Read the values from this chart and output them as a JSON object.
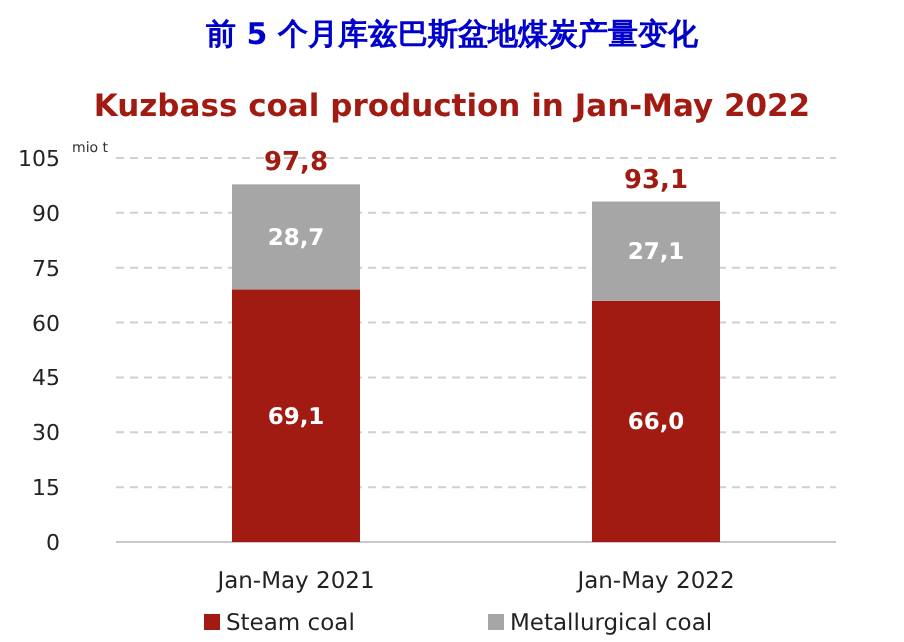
{
  "chart_data": {
    "type": "bar",
    "title": "前 5 个月库兹巴斯盆地煤炭产量变化",
    "subtitle": "Kuzbass coal production  in Jan-May 2022",
    "ylabel": "mio t",
    "categories": [
      "Jan-May 2021",
      "Jan-May 2022"
    ],
    "stacked": true,
    "series": [
      {
        "name": "Steam coal",
        "color": "#a11b12",
        "values": [
          69.1,
          66.0
        ],
        "value_labels": [
          "69,1",
          "66,0"
        ]
      },
      {
        "name": "Metallurgical coal",
        "color": "#a6a6a6",
        "values": [
          28.7,
          27.1
        ],
        "value_labels": [
          "28,7",
          "27,1"
        ]
      }
    ],
    "totals": [
      "97,8",
      "93,1"
    ],
    "ylim": [
      0,
      105
    ],
    "yticks": [
      0,
      15,
      30,
      45,
      60,
      75,
      90,
      105
    ],
    "grid": "y",
    "legend": "bottom"
  }
}
